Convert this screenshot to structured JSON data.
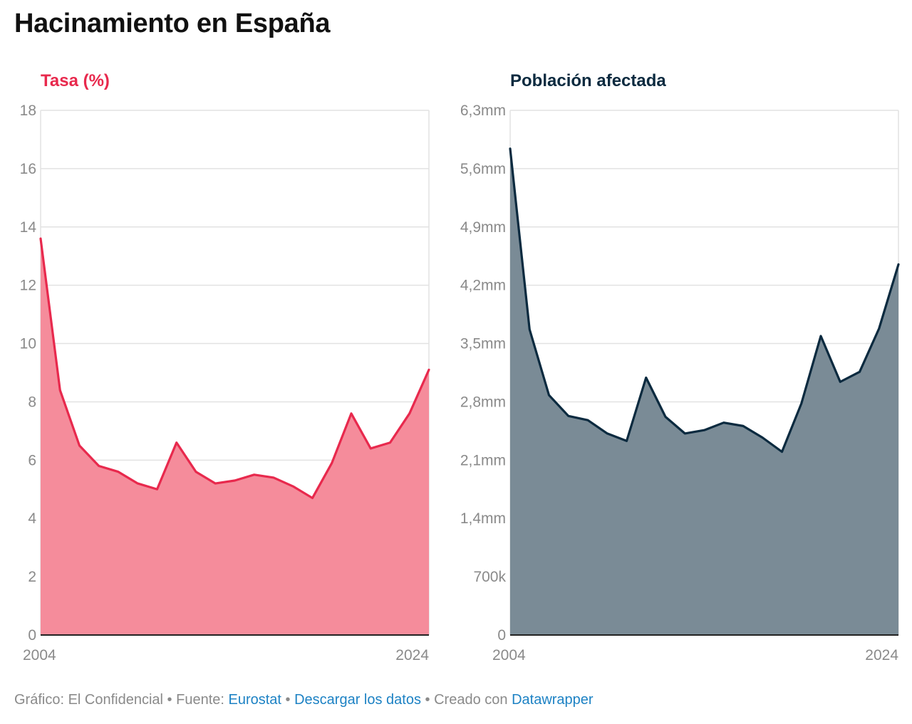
{
  "title": "Hacinamiento en España",
  "colors": {
    "rate_line": "#e8294d",
    "rate_fill": "#f58c9b",
    "pop_line": "#0b2a3f",
    "pop_fill": "#7a8b96",
    "grid": "#e2e2e2",
    "tick": "#8a8a8a",
    "link": "#1d82c4"
  },
  "chart_data": [
    {
      "type": "area",
      "title": "Tasa (%)",
      "title_color": "#e8294d",
      "xlabel": "",
      "ylabel": "",
      "x": [
        2004,
        2005,
        2006,
        2007,
        2008,
        2009,
        2010,
        2011,
        2012,
        2013,
        2014,
        2015,
        2016,
        2017,
        2018,
        2019,
        2020,
        2021,
        2022,
        2023,
        2024
      ],
      "values": [
        13.6,
        8.4,
        6.5,
        5.8,
        5.6,
        5.2,
        5.0,
        6.6,
        5.6,
        5.2,
        5.3,
        5.5,
        5.4,
        5.1,
        4.7,
        5.9,
        7.6,
        6.4,
        6.6,
        7.6,
        9.1
      ],
      "ylim": [
        0,
        18
      ],
      "yticks": [
        0,
        2,
        4,
        6,
        8,
        10,
        12,
        14,
        16,
        18
      ],
      "ytick_labels": [
        "0",
        "2",
        "4",
        "6",
        "8",
        "10",
        "12",
        "14",
        "16",
        "18"
      ],
      "xtick_labels": [
        "2004",
        "2024"
      ]
    },
    {
      "type": "area",
      "title": "Población afectada",
      "title_color": "#0b2a3f",
      "xlabel": "",
      "ylabel": "",
      "x": [
        2004,
        2005,
        2006,
        2007,
        2008,
        2009,
        2010,
        2011,
        2012,
        2013,
        2014,
        2015,
        2016,
        2017,
        2018,
        2019,
        2020,
        2021,
        2022,
        2023,
        2024
      ],
      "values": [
        5840000,
        3670000,
        2880000,
        2630000,
        2580000,
        2420000,
        2330000,
        3090000,
        2620000,
        2420000,
        2460000,
        2550000,
        2510000,
        2370000,
        2200000,
        2780000,
        3590000,
        3040000,
        3160000,
        3680000,
        4450000
      ],
      "ylim": [
        0,
        6300000
      ],
      "yticks": [
        0,
        700000,
        1400000,
        2100000,
        2800000,
        3500000,
        4200000,
        4900000,
        5600000,
        6300000
      ],
      "ytick_labels": [
        "0",
        "700k",
        "1,4mm",
        "2,1mm",
        "2,8mm",
        "3,5mm",
        "4,2mm",
        "4,9mm",
        "5,6mm",
        "6,3mm"
      ],
      "xtick_labels": [
        "2004",
        "2024"
      ]
    }
  ],
  "footer": {
    "credit": "Gráfico: El Confidencial",
    "sep1": " • ",
    "source_label": "Fuente: ",
    "source_link": "Eurostat",
    "sep2": " • ",
    "download_link": "Descargar los datos",
    "sep3": " • ",
    "created_label": "Creado con ",
    "created_link": "Datawrapper"
  }
}
